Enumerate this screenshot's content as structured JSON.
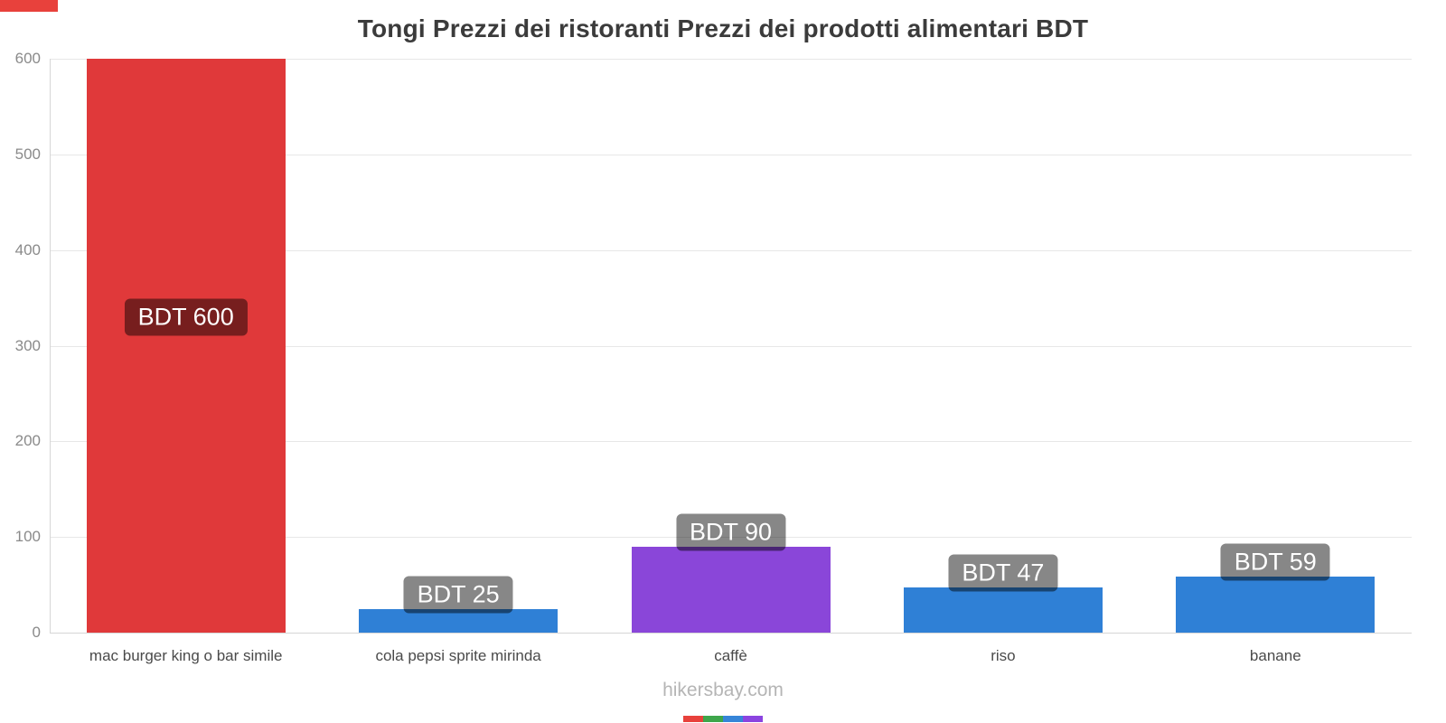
{
  "page": {
    "title": "Tongi Prezzi dei ristoranti Prezzi dei prodotti alimentari BDT",
    "footer": "hikersbay.com"
  },
  "decor": {
    "top_stripe_color": "#e8413c",
    "bottom_strip_colors": [
      "#e8413c",
      "#3ea64b",
      "#3685d8",
      "#8b44e0"
    ]
  },
  "chart_data": {
    "type": "bar",
    "title": "Tongi Prezzi dei ristoranti Prezzi dei prodotti alimentari BDT",
    "categories": [
      "mac burger king o bar simile",
      "cola pepsi sprite mirinda",
      "caffè",
      "riso",
      "banane"
    ],
    "values": [
      600,
      25,
      90,
      47,
      59
    ],
    "value_labels": [
      "BDT 600",
      "BDT 25",
      "BDT 90",
      "BDT 47",
      "BDT 59"
    ],
    "bar_colors": [
      "#e0393a",
      "#2f80d6",
      "#8a46d9",
      "#2f80d6",
      "#2f80d6"
    ],
    "currency": "BDT",
    "xlabel": "",
    "ylabel": "",
    "ylim": [
      0,
      600
    ],
    "yticks": [
      0,
      100,
      200,
      300,
      400,
      500,
      600
    ],
    "grid": true,
    "legend": "none"
  }
}
